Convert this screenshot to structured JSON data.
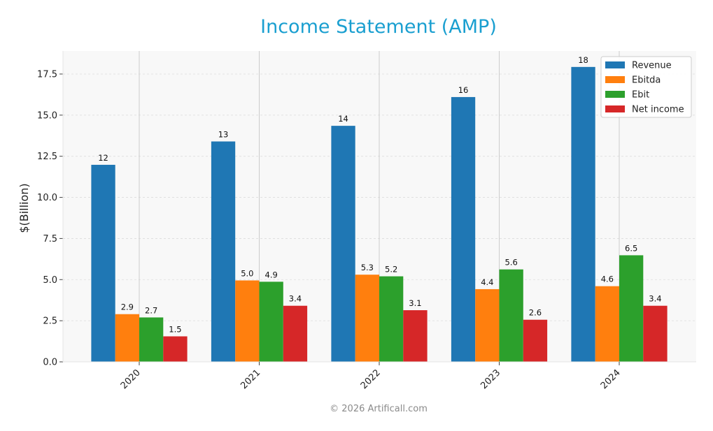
{
  "chart_data": {
    "type": "bar",
    "title": "Income Statement (AMP)",
    "ylabel": "$(Billion)",
    "xlabel": "",
    "categories": [
      "2020",
      "2021",
      "2022",
      "2023",
      "2024"
    ],
    "ylim": [
      0,
      18.9
    ],
    "yticks": [
      "0.0",
      "2.5",
      "5.0",
      "7.5",
      "10.0",
      "12.5",
      "15.0",
      "17.5"
    ],
    "ytick_values": [
      0,
      2.5,
      5.0,
      7.5,
      10.0,
      12.5,
      15.0,
      17.5
    ],
    "grid": true,
    "legend_position": "top-right",
    "series": [
      {
        "name": "Revenue",
        "color": "#1f77b4",
        "values": [
          11.98,
          13.4,
          14.35,
          16.1,
          17.93
        ],
        "labels": [
          "12",
          "13",
          "14",
          "16",
          "18"
        ]
      },
      {
        "name": "Ebitda",
        "color": "#ff7f0e",
        "values": [
          2.9,
          4.95,
          5.3,
          4.42,
          4.6
        ],
        "labels": [
          "2.9",
          "5.0",
          "5.3",
          "4.4",
          "4.6"
        ]
      },
      {
        "name": "Ebit",
        "color": "#2ca02c",
        "values": [
          2.7,
          4.87,
          5.2,
          5.62,
          6.48
        ],
        "labels": [
          "2.7",
          "4.9",
          "5.2",
          "5.6",
          "6.5"
        ]
      },
      {
        "name": "Net income",
        "color": "#d62728",
        "values": [
          1.55,
          3.41,
          3.14,
          2.56,
          3.41
        ],
        "labels": [
          "1.5",
          "3.4",
          "3.1",
          "2.6",
          "3.4"
        ]
      }
    ]
  },
  "footer": "© 2026 Artificall.com"
}
